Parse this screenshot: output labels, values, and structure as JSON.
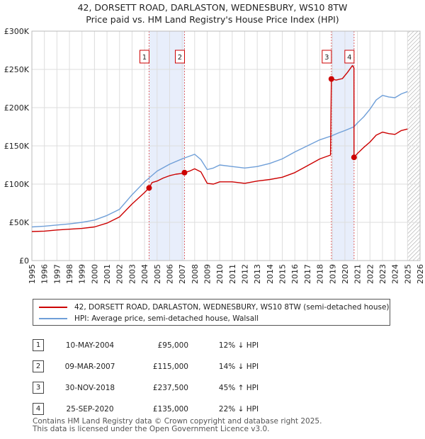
{
  "chart_data": {
    "type": "line",
    "title": "42, DORSETT ROAD, DARLASTON, WEDNESBURY, WS10 8TW",
    "subtitle": "Price paid vs. HM Land Registry's House Price Index (HPI)",
    "xlim": [
      1995,
      2026
    ],
    "ylim": [
      0,
      300000
    ],
    "x_ticks": [
      "1995",
      "1996",
      "1997",
      "1998",
      "1999",
      "2000",
      "2001",
      "2002",
      "2003",
      "2004",
      "2005",
      "2006",
      "2007",
      "2008",
      "2009",
      "2010",
      "2011",
      "2012",
      "2013",
      "2014",
      "2015",
      "2016",
      "2017",
      "2018",
      "2019",
      "2020",
      "2021",
      "2022",
      "2023",
      "2024",
      "2025",
      "2026"
    ],
    "y_ticks": [
      {
        "value": 0,
        "label": "£0"
      },
      {
        "value": 50000,
        "label": "£50K"
      },
      {
        "value": 100000,
        "label": "£100K"
      },
      {
        "value": 150000,
        "label": "£150K"
      },
      {
        "value": 200000,
        "label": "£200K"
      },
      {
        "value": 250000,
        "label": "£250K"
      },
      {
        "value": 300000,
        "label": "£300K"
      }
    ],
    "grid": true,
    "shaded_periods": [
      [
        2004.36,
        2007.19
      ],
      [
        2018.92,
        2020.73
      ]
    ],
    "hatched_from": 2025.0,
    "series": [
      {
        "name": "42, DORSETT ROAD, DARLASTON, WEDNESBURY, WS10 8TW (semi-detached house)",
        "color": "#cc0000",
        "points": [
          [
            1995.0,
            38000
          ],
          [
            1996.0,
            38500
          ],
          [
            1997.0,
            40000
          ],
          [
            1998.0,
            41000
          ],
          [
            1999.0,
            42000
          ],
          [
            2000.0,
            44000
          ],
          [
            2001.0,
            49000
          ],
          [
            2002.0,
            57000
          ],
          [
            2003.0,
            74000
          ],
          [
            2004.0,
            89000
          ],
          [
            2004.36,
            95000
          ],
          [
            2004.6,
            102000
          ],
          [
            2005.0,
            104000
          ],
          [
            2005.5,
            108000
          ],
          [
            2006.0,
            111000
          ],
          [
            2006.5,
            113000
          ],
          [
            2007.0,
            114000
          ],
          [
            2007.19,
            115000
          ],
          [
            2007.6,
            117000
          ],
          [
            2008.0,
            120000
          ],
          [
            2008.5,
            116000
          ],
          [
            2009.0,
            101000
          ],
          [
            2009.5,
            100000
          ],
          [
            2010.0,
            103000
          ],
          [
            2011.0,
            103000
          ],
          [
            2012.0,
            101000
          ],
          [
            2013.0,
            104000
          ],
          [
            2014.0,
            106000
          ],
          [
            2015.0,
            109000
          ],
          [
            2016.0,
            115000
          ],
          [
            2017.0,
            124000
          ],
          [
            2018.0,
            133000
          ],
          [
            2018.85,
            138000
          ],
          [
            2018.92,
            237500
          ],
          [
            2019.3,
            236000
          ],
          [
            2019.8,
            238000
          ],
          [
            2020.2,
            246000
          ],
          [
            2020.6,
            255000
          ],
          [
            2020.72,
            252000
          ],
          [
            2020.73,
            135000
          ],
          [
            2021.0,
            140000
          ],
          [
            2021.5,
            148000
          ],
          [
            2022.0,
            155000
          ],
          [
            2022.5,
            164000
          ],
          [
            2023.0,
            168000
          ],
          [
            2023.5,
            166000
          ],
          [
            2024.0,
            165000
          ],
          [
            2024.5,
            170000
          ],
          [
            2025.0,
            172000
          ]
        ]
      },
      {
        "name": "HPI: Average price, semi-detached house, Walsall",
        "color": "#6f9fd8",
        "points": [
          [
            1995.0,
            44000
          ],
          [
            1996.0,
            45000
          ],
          [
            1997.0,
            46500
          ],
          [
            1998.0,
            48000
          ],
          [
            1999.0,
            50000
          ],
          [
            2000.0,
            53000
          ],
          [
            2001.0,
            59000
          ],
          [
            2002.0,
            67000
          ],
          [
            2003.0,
            86000
          ],
          [
            2004.0,
            103000
          ],
          [
            2004.36,
            108000
          ],
          [
            2005.0,
            117000
          ],
          [
            2006.0,
            126000
          ],
          [
            2007.0,
            133000
          ],
          [
            2007.5,
            136000
          ],
          [
            2008.0,
            139000
          ],
          [
            2008.5,
            132000
          ],
          [
            2009.0,
            119000
          ],
          [
            2009.5,
            121000
          ],
          [
            2010.0,
            125000
          ],
          [
            2011.0,
            123000
          ],
          [
            2012.0,
            121000
          ],
          [
            2013.0,
            123000
          ],
          [
            2014.0,
            127000
          ],
          [
            2015.0,
            133000
          ],
          [
            2016.0,
            142000
          ],
          [
            2017.0,
            150000
          ],
          [
            2018.0,
            158000
          ],
          [
            2018.92,
            163000
          ],
          [
            2019.5,
            167000
          ],
          [
            2020.0,
            170000
          ],
          [
            2020.73,
            175000
          ],
          [
            2021.0,
            180000
          ],
          [
            2021.5,
            188000
          ],
          [
            2022.0,
            198000
          ],
          [
            2022.5,
            210000
          ],
          [
            2023.0,
            216000
          ],
          [
            2023.5,
            214000
          ],
          [
            2024.0,
            213000
          ],
          [
            2024.5,
            218000
          ],
          [
            2025.0,
            221000
          ]
        ]
      }
    ],
    "markers": [
      {
        "label": "1",
        "x": 2004.36,
        "y": 95000
      },
      {
        "label": "2",
        "x": 2007.19,
        "y": 115000
      },
      {
        "label": "3",
        "x": 2018.92,
        "y": 237500
      },
      {
        "label": "4",
        "x": 2020.73,
        "y": 135000
      }
    ]
  },
  "legend": {
    "property_label": "42, DORSETT ROAD, DARLASTON, WEDNESBURY, WS10 8TW (semi-detached house)",
    "hpi_label": "HPI: Average price, semi-detached house, Walsall",
    "property_color": "#cc0000",
    "hpi_color": "#6f9fd8"
  },
  "sales": [
    {
      "num": "1",
      "date": "10-MAY-2004",
      "price": "£95,000",
      "hpi": "12% ↓ HPI"
    },
    {
      "num": "2",
      "date": "09-MAR-2007",
      "price": "£115,000",
      "hpi": "14% ↓ HPI"
    },
    {
      "num": "3",
      "date": "30-NOV-2018",
      "price": "£237,500",
      "hpi": "45% ↑ HPI"
    },
    {
      "num": "4",
      "date": "25-SEP-2020",
      "price": "£135,000",
      "hpi": "22% ↓ HPI"
    }
  ],
  "footer": {
    "line1": "Contains HM Land Registry data © Crown copyright and database right 2025.",
    "line2": "This data is licensed under the Open Government Licence v3.0."
  }
}
